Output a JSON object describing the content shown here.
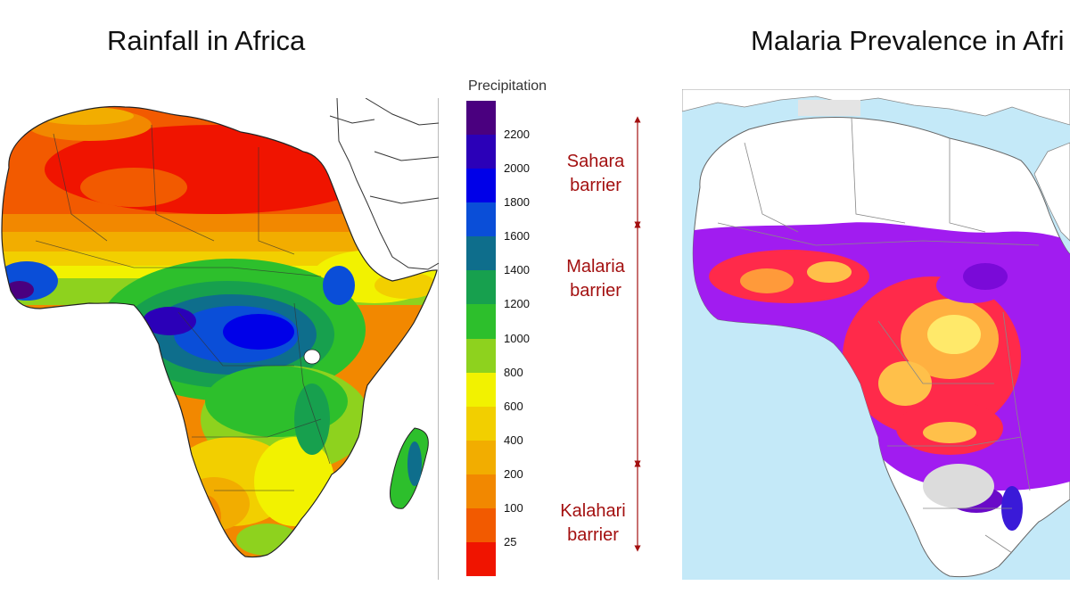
{
  "titles": {
    "left": "Rainfall in Africa",
    "right": "Malaria Prevalence in Afri"
  },
  "legend": {
    "title": "Precipitation",
    "bins": [
      {
        "color": "#4a007f",
        "label": "2200"
      },
      {
        "color": "#2b00b8",
        "label": "2000"
      },
      {
        "color": "#0000e8",
        "label": "1800"
      },
      {
        "color": "#0a4ed8",
        "label": "1600"
      },
      {
        "color": "#0e6e8c",
        "label": "1400"
      },
      {
        "color": "#17a04e",
        "label": "1200"
      },
      {
        "color": "#2dbf2c",
        "label": "1000"
      },
      {
        "color": "#8ed21e",
        "label": "800"
      },
      {
        "color": "#f2f200",
        "label": "600"
      },
      {
        "color": "#f2cf00",
        "label": "400"
      },
      {
        "color": "#f2ad00",
        "label": "200"
      },
      {
        "color": "#f28800",
        "label": "100"
      },
      {
        "color": "#f25a00",
        "label": "25"
      },
      {
        "color": "#f01400",
        "label": ""
      }
    ]
  },
  "barriers": [
    {
      "line1": "Sahara",
      "line2": "barrier"
    },
    {
      "line1": "Malaria",
      "line2": "barrier"
    },
    {
      "line1": "Kalahari",
      "line2": "barrier"
    }
  ],
  "colors": {
    "ocean": "#c4e9f8",
    "barrier": "#a31010",
    "malaria_high": "#ffe96a",
    "malaria_mid": "#ff2a4a",
    "malaria_low": "#a11cf0"
  }
}
